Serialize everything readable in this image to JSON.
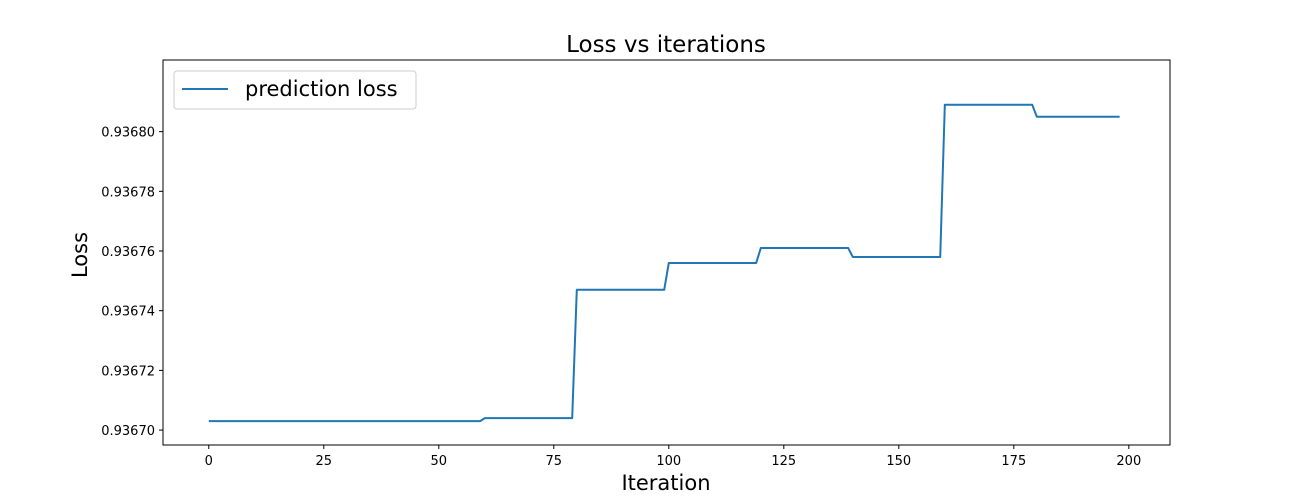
{
  "chart_data": {
    "type": "line",
    "title": "Loss vs iterations",
    "xlabel": "Iteration",
    "ylabel": "Loss",
    "xlim": [
      -9.95,
      208.95
    ],
    "ylim": [
      0.936695,
      0.936824
    ],
    "xticks": [
      0,
      25,
      50,
      75,
      100,
      125,
      150,
      175,
      200
    ],
    "xtick_labels": [
      "0",
      "25",
      "50",
      "75",
      "100",
      "125",
      "150",
      "175",
      "200"
    ],
    "yticks": [
      0.9367,
      0.93672,
      0.93674,
      0.93676,
      0.93678,
      0.9368
    ],
    "ytick_labels": [
      "0.93670",
      "0.93672",
      "0.93674",
      "0.93676",
      "0.93678",
      "0.93680"
    ],
    "grid": false,
    "legend_position": "upper-left",
    "series": [
      {
        "name": "prediction loss",
        "color": "#1f77b4",
        "x": [
          0,
          59,
          60,
          79,
          80,
          99,
          100,
          119,
          120,
          139,
          140,
          159,
          160,
          179,
          180,
          198
        ],
        "y": [
          0.936703,
          0.936703,
          0.936704,
          0.936704,
          0.936747,
          0.936747,
          0.936756,
          0.936756,
          0.936761,
          0.936761,
          0.936758,
          0.936758,
          0.936809,
          0.936809,
          0.936805,
          0.936805
        ]
      }
    ]
  }
}
